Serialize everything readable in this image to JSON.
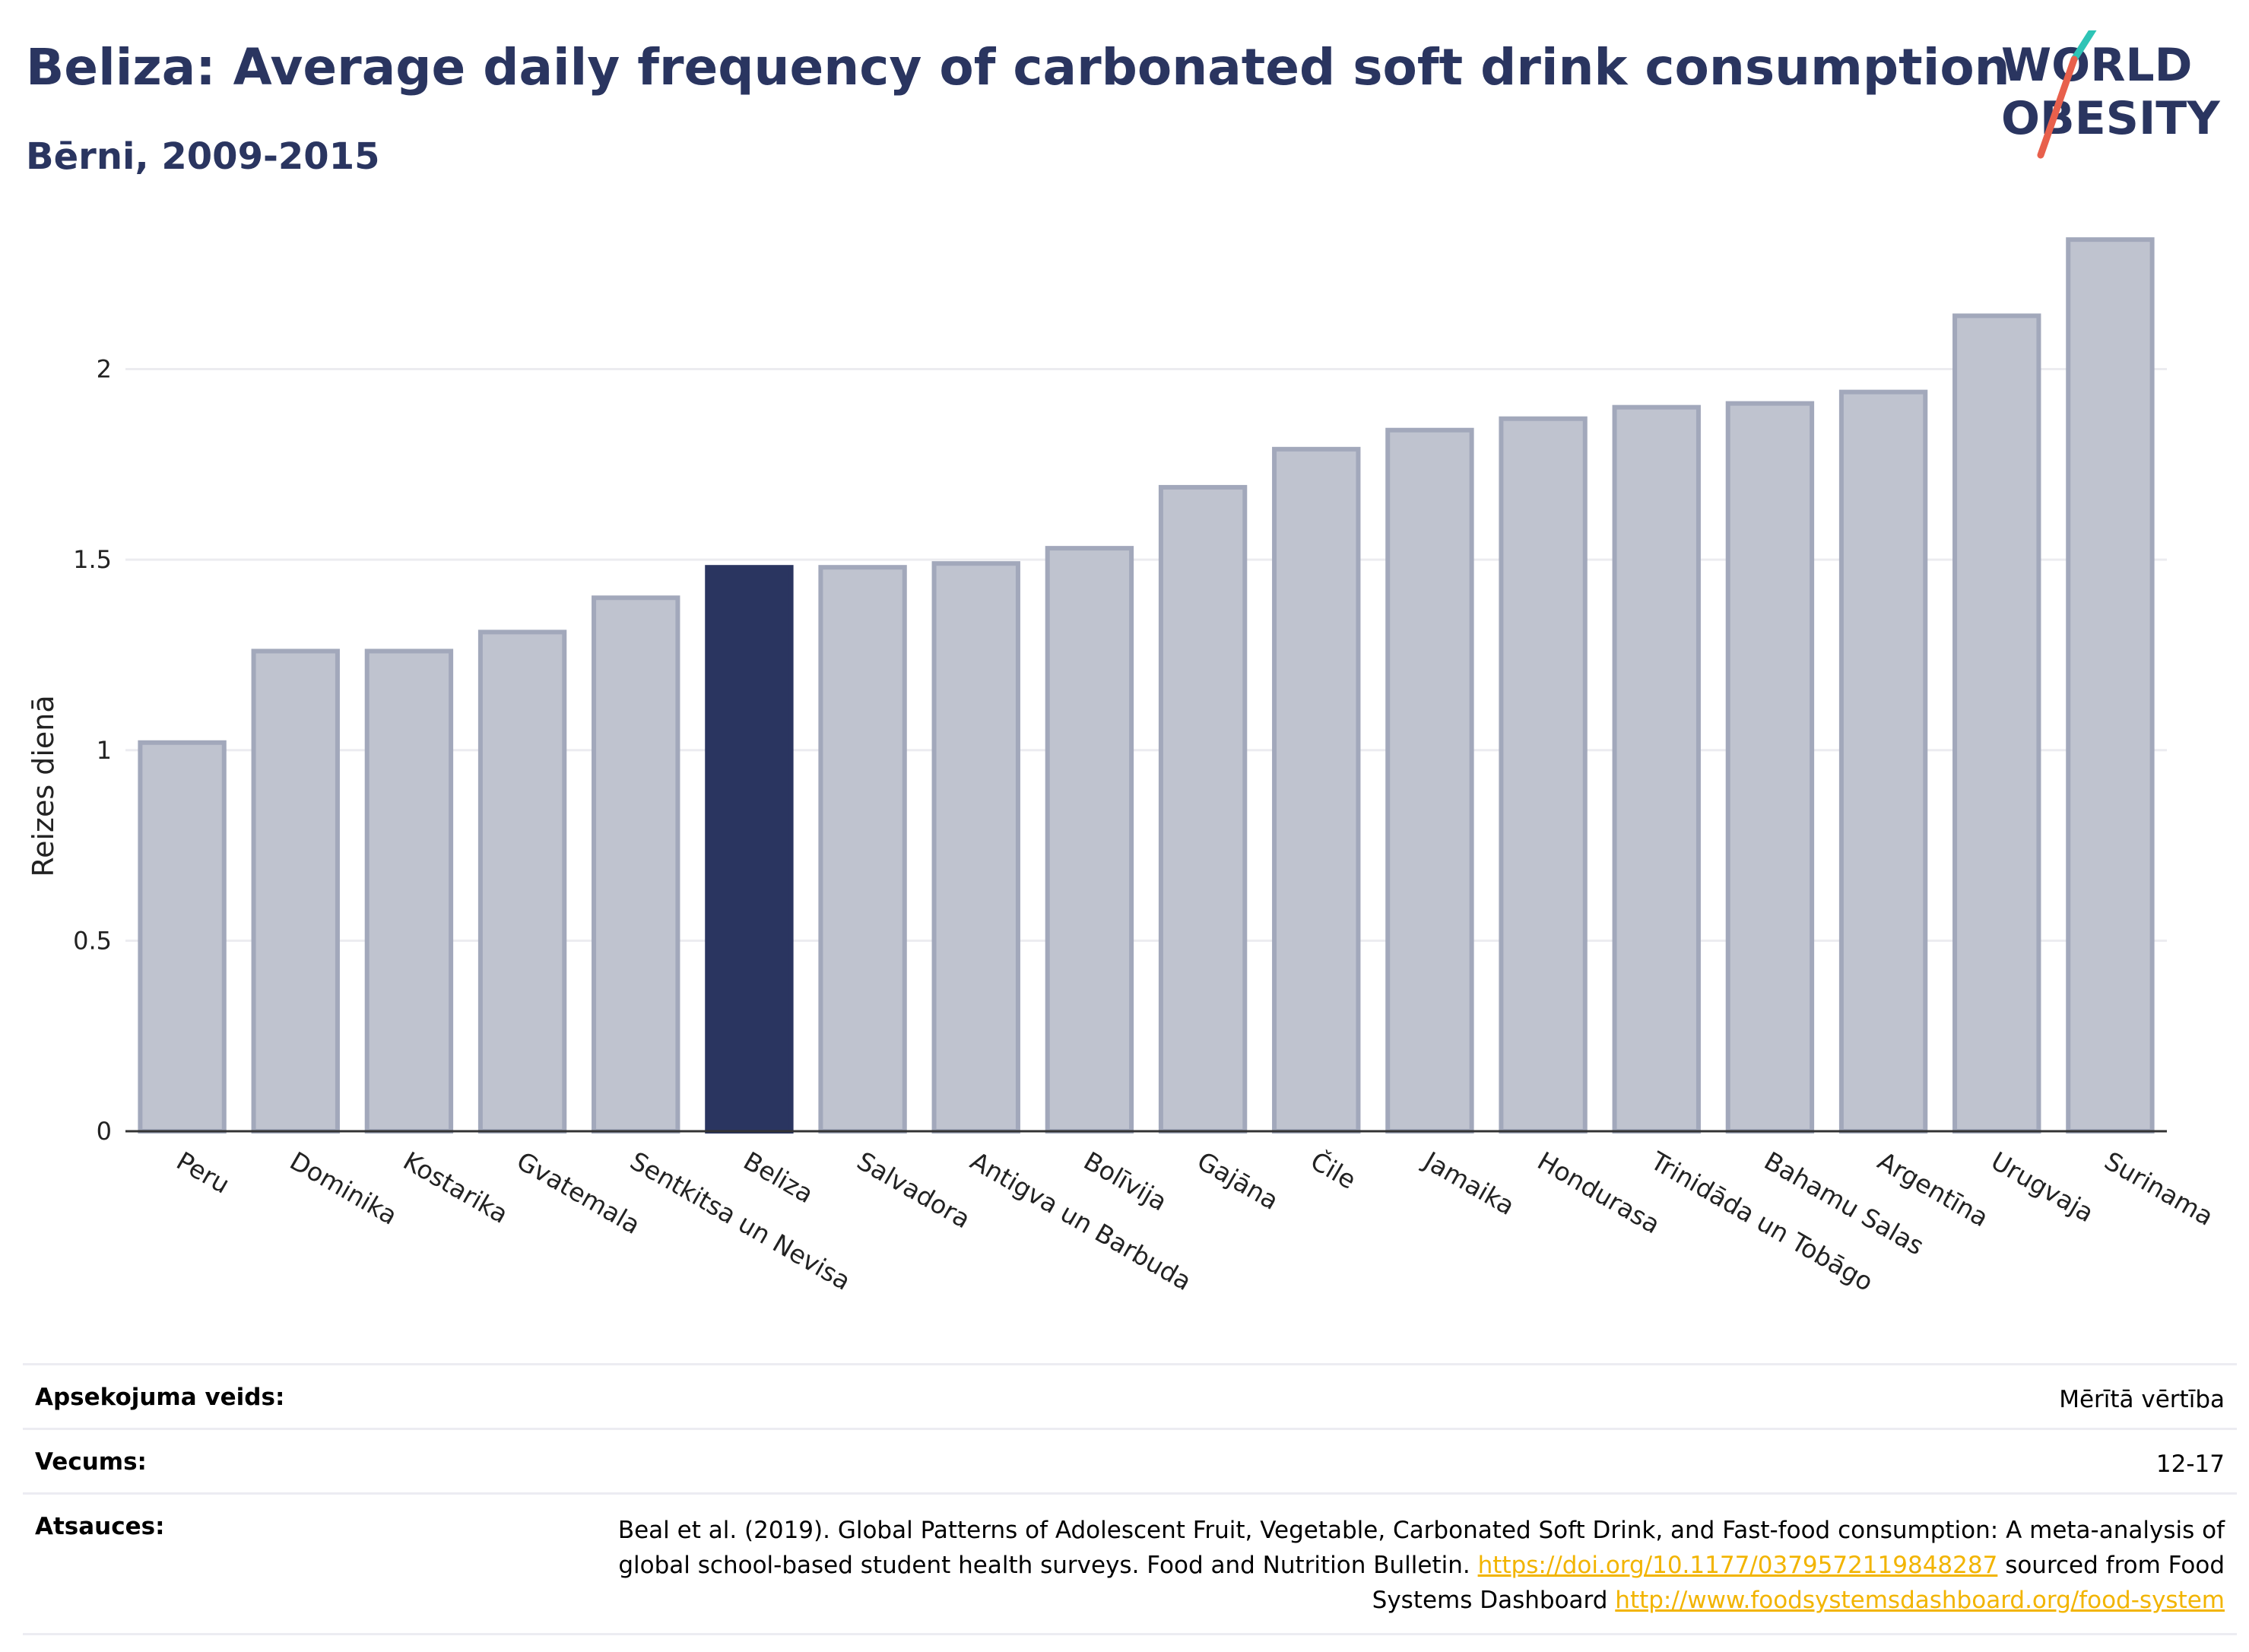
{
  "header": {
    "title": "Beliza: Average daily frequency of carbonated soft drink consumption",
    "subtitle": "Bērni, 2009-2015"
  },
  "logo": {
    "line1": "WORLD",
    "line2": "OBESITY",
    "colors": {
      "text": "#2a3560",
      "slash_teal": "#2ec4b6",
      "slash_red": "#e8604c"
    }
  },
  "chart_data": {
    "type": "bar",
    "title": "Beliza: Average daily frequency of carbonated soft drink consumption",
    "subtitle": "Bērni, 2009-2015",
    "ylabel": "Reizes dienā",
    "xlabel": "",
    "ylim": [
      0,
      2.45
    ],
    "yticks": [
      0,
      0.5,
      1,
      1.5,
      2
    ],
    "ytick_labels": [
      "0",
      "0.5",
      "1",
      "1.5",
      "2"
    ],
    "grid": true,
    "highlight": "Beliza",
    "colors": {
      "bar": "#bfc3cf",
      "bar_edge": "#a2a8bb",
      "highlight": "#2a3560"
    },
    "categories": [
      "Peru",
      "Dominika",
      "Kostarika",
      "Gvatemala",
      "Sentkitsa un Nevisa",
      "Beliza",
      "Salvadora",
      "Antigva un Barbuda",
      "Bolīvija",
      "Gajāna",
      "Čile",
      "Jamaika",
      "Hondurasa",
      "Trinidāda un Tobāgo",
      "Bahamu Salas",
      "Argentīna",
      "Urugvaja",
      "Surinama"
    ],
    "values": [
      1.02,
      1.26,
      1.26,
      1.31,
      1.4,
      1.48,
      1.48,
      1.49,
      1.53,
      1.69,
      1.79,
      1.84,
      1.87,
      1.9,
      1.91,
      1.94,
      2.14,
      2.34
    ]
  },
  "meta": {
    "survey_label": "Apsekojuma veids:",
    "survey_value": "Mērītā vērtība",
    "age_label": "Vecums:",
    "age_value": "12-17",
    "refs_label": "Atsauces:",
    "refs_text1": "Beal et al. (2019). Global Patterns of Adolescent Fruit, Vegetable, Carbonated Soft Drink, and Fast-food consumption: A meta-analysis of global school-based student health surveys. Food and Nutrition Bulletin.",
    "refs_link1": "https://doi.org/10.1177/0379572119848287",
    "refs_text2": "sourced from Food Systems Dashboard",
    "refs_link2": "http://www.foodsystemsdashboard.org/food-system"
  }
}
